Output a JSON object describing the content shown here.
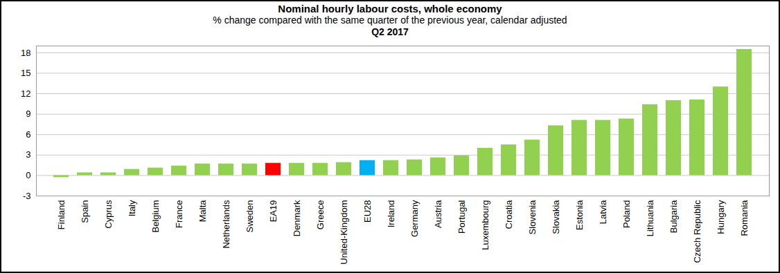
{
  "chart_data": {
    "type": "bar",
    "title": "Nominal hourly labour costs, whole economy",
    "subtitle": [
      "% change compared with the same quarter of the previous year, calendar adjusted",
      "Q2 2017"
    ],
    "categories": [
      "Finland",
      "Spain",
      "Cyprus",
      "Italy",
      "Belgium",
      "France",
      "Malta",
      "Netherlands",
      "Sweden",
      "EA19",
      "Denmark",
      "Greece",
      "United-Kingdom",
      "EU28",
      "Ireland",
      "Germany",
      "Austria",
      "Portugal",
      "Luxembourg",
      "Croatia",
      "Slovenia",
      "Slovakia",
      "Estonia",
      "Latvia",
      "Poland",
      "Lithuania",
      "Bulgaria",
      "Czech Republic",
      "Hungary",
      "Romania"
    ],
    "values": [
      -0.3,
      0.4,
      0.4,
      0.9,
      1.1,
      1.4,
      1.7,
      1.7,
      1.7,
      1.8,
      1.8,
      1.8,
      1.9,
      2.2,
      2.2,
      2.3,
      2.6,
      2.9,
      4.0,
      4.5,
      5.2,
      7.3,
      8.1,
      8.1,
      8.3,
      10.4,
      11.0,
      11.1,
      13.0,
      18.5
    ],
    "colors": [
      "#92d050",
      "#92d050",
      "#92d050",
      "#92d050",
      "#92d050",
      "#92d050",
      "#92d050",
      "#92d050",
      "#92d050",
      "#ff0000",
      "#92d050",
      "#92d050",
      "#92d050",
      "#00b0f0",
      "#92d050",
      "#92d050",
      "#92d050",
      "#92d050",
      "#92d050",
      "#92d050",
      "#92d050",
      "#92d050",
      "#92d050",
      "#92d050",
      "#92d050",
      "#92d050",
      "#92d050",
      "#92d050",
      "#92d050",
      "#92d050"
    ],
    "ylim": [
      -3,
      19
    ],
    "yticks": [
      -3,
      0,
      3,
      6,
      9,
      12,
      15,
      18
    ],
    "grid": true
  }
}
